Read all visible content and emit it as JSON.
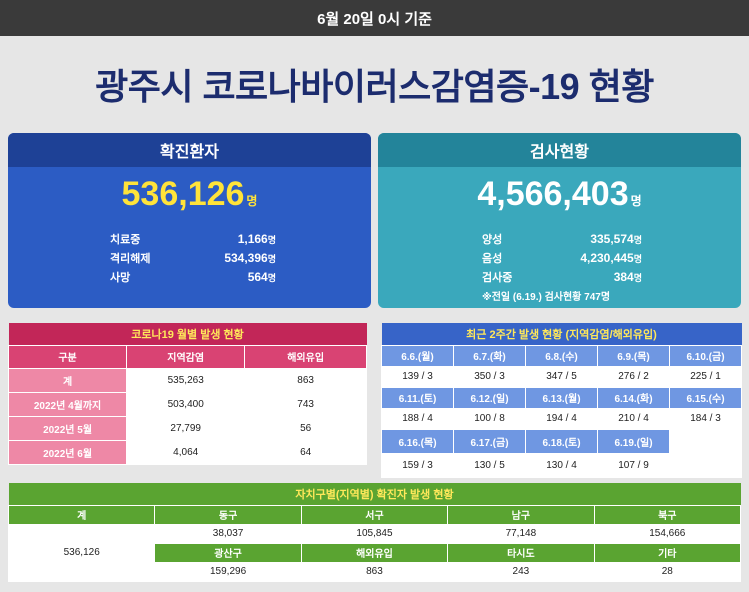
{
  "header": {
    "date_text": "6월 20일 0시 기준"
  },
  "title": "광주시 코로나바이러스감염증-19 현황",
  "confirmed": {
    "heading": "확진환자",
    "total": "536,126",
    "unit": "명",
    "details": [
      {
        "label": "치료중",
        "value": "1,166",
        "unit": "명"
      },
      {
        "label": "격리해제",
        "value": "534,396",
        "unit": "명"
      },
      {
        "label": "사망",
        "value": "564",
        "unit": "명"
      }
    ]
  },
  "tests": {
    "heading": "검사현황",
    "total": "4,566,403",
    "unit": "명",
    "details": [
      {
        "label": "양성",
        "value": "335,574",
        "unit": "명"
      },
      {
        "label": "음성",
        "value": "4,230,445",
        "unit": "명"
      },
      {
        "label": "검사중",
        "value": "384",
        "unit": "명"
      }
    ],
    "note": "※전일 (6.19.) 검사현황 747명"
  },
  "monthly": {
    "title": "코로나19 월별 발생 현황",
    "headers": [
      "구분",
      "지역감염",
      "해외유입"
    ],
    "rows": [
      [
        "계",
        "535,263",
        "863"
      ],
      [
        "2022년 4월까지",
        "503,400",
        "743"
      ],
      [
        "2022년 5월",
        "27,799",
        "56"
      ],
      [
        "2022년 6월",
        "4,064",
        "64"
      ]
    ]
  },
  "biweekly": {
    "title": "최근 2주간 발생 현황 (지역감염/해외유입)",
    "rows": [
      {
        "dates": [
          "6.6.(월)",
          "6.7.(화)",
          "6.8.(수)",
          "6.9.(목)",
          "6.10.(금)"
        ],
        "values": [
          "139 / 3",
          "350 / 3",
          "347 / 5",
          "276 / 2",
          "225 / 1"
        ]
      },
      {
        "dates": [
          "6.11.(토)",
          "6.12.(일)",
          "6.13.(월)",
          "6.14.(화)",
          "6.15.(수)"
        ],
        "values": [
          "188 / 4",
          "100 / 8",
          "194 / 4",
          "210 / 4",
          "184 / 3"
        ]
      },
      {
        "dates": [
          "6.16.(목)",
          "6.17.(금)",
          "6.18.(토)",
          "6.19.(일)"
        ],
        "values": [
          "159 / 3",
          "130 / 5",
          "130 / 4",
          "107 / 9"
        ]
      }
    ]
  },
  "district": {
    "title": "자치구별(지역별) 확진자 발생 현황",
    "total_label": "계",
    "total_value": "536,126",
    "row1_headers": [
      "동구",
      "서구",
      "남구",
      "북구"
    ],
    "row1_values": [
      "38,037",
      "105,845",
      "77,148",
      "154,666"
    ],
    "row2_headers": [
      "광산구",
      "해외유입",
      "타시도",
      "기타"
    ],
    "row2_values": [
      "159,296",
      "863",
      "243",
      "28"
    ]
  }
}
